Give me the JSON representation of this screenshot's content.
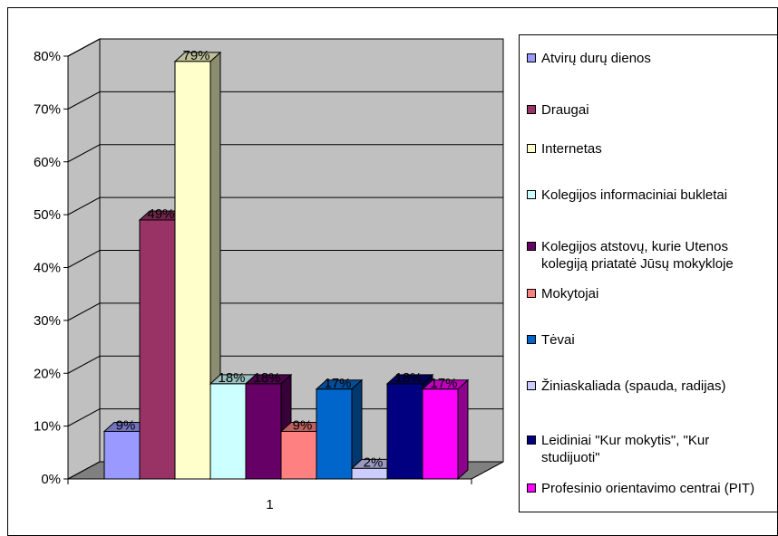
{
  "chart_data": {
    "type": "bar",
    "categories": [
      "1"
    ],
    "ylim": [
      0,
      80
    ],
    "yticks": [
      "0%",
      "10%",
      "20%",
      "30%",
      "40%",
      "50%",
      "60%",
      "70%",
      "80%"
    ],
    "grid": true,
    "legend_position": "right",
    "series": [
      {
        "name": "Atvirų durų dienos",
        "value": 9,
        "label": "9%",
        "color": "#9999ff"
      },
      {
        "name": "Draugai",
        "value": 49,
        "label": "49%",
        "color": "#993366"
      },
      {
        "name": "Internetas",
        "value": 79,
        "label": "79%",
        "color": "#ffffcc"
      },
      {
        "name": "Kolegijos informaciniai bukletai",
        "value": 18,
        "label": "18%",
        "color": "#ccffff"
      },
      {
        "name": "Kolegijos atstovų, kurie Utenos kolegiją priatatė Jūsų mokykloje",
        "value": 18,
        "label": "18%",
        "color": "#660066"
      },
      {
        "name": "Mokytojai",
        "value": 9,
        "label": "9%",
        "color": "#ff8080"
      },
      {
        "name": "Tėvai",
        "value": 17,
        "label": "17%",
        "color": "#0066cc"
      },
      {
        "name": "Žiniaskaliada (spauda, radijas)",
        "value": 2,
        "label": "2%",
        "color": "#ccccff"
      },
      {
        "name": "Leidiniai \"Kur mokytis\", \"Kur studijuoti\"",
        "value": 18,
        "label": "18%",
        "color": "#000080"
      },
      {
        "name": "Profesinio orientavimo centrai (PIT)",
        "value": 17,
        "label": "17%",
        "color": "#ff00ff"
      }
    ],
    "wall_color": "#c0c0c0",
    "floor_color": "#808080"
  }
}
